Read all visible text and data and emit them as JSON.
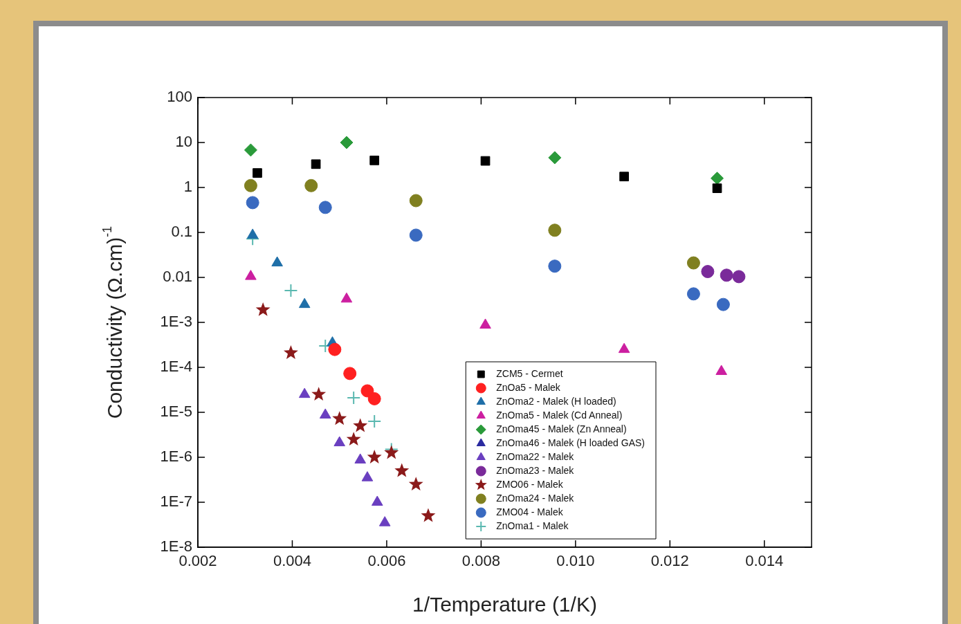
{
  "chart_data": {
    "type": "scatter",
    "xlabel": "1/Temperature (1/K)",
    "ylabel": "Conductivity (Ω.cm)$^{-1}$",
    "log": "y",
    "grid": false,
    "legend": "bottom right",
    "xlim": [
      0.002,
      0.015
    ],
    "xticks": [
      {
        "value": 0.002,
        "label": "0.002"
      },
      {
        "value": 0.004,
        "label": "0.004"
      },
      {
        "value": 0.006,
        "label": "0.006"
      },
      {
        "value": 0.008,
        "label": "0.008"
      },
      {
        "value": 0.01,
        "label": "0.010"
      },
      {
        "value": 0.012,
        "label": "0.012"
      },
      {
        "value": 0.014,
        "label": "0.014"
      }
    ],
    "ylim": [
      1e-08,
      100
    ],
    "yticks": [
      {
        "value": 100,
        "label": "100"
      },
      {
        "value": 10,
        "label": "10"
      },
      {
        "value": 1,
        "label": "1"
      },
      {
        "value": 0.1,
        "label": "0.1"
      },
      {
        "value": 0.01,
        "label": "0.01"
      },
      {
        "value": 0.001,
        "label": "1E-3"
      },
      {
        "value": 0.0001,
        "label": "1E-4"
      },
      {
        "value": 1e-05,
        "label": "1E-5"
      },
      {
        "value": 1e-06,
        "label": "1E-6"
      },
      {
        "value": 1e-07,
        "label": "1E-7"
      },
      {
        "value": 1e-08,
        "label": "1E-8"
      }
    ],
    "series": [
      {
        "name": "ZCM5 - Cermet",
        "color": "#000000",
        "marker": "square",
        "x": [
          0.00326,
          0.0045,
          0.00574,
          0.00809,
          0.01103,
          0.013
        ],
        "values": [
          2.1,
          3.3,
          4.0,
          3.9,
          1.75,
          0.96
        ]
      },
      {
        "name": "ZnOa5 - Malek",
        "color": "#ff2020",
        "marker": "circle",
        "x": [
          0.0049,
          0.00522,
          0.00559,
          0.00574
        ],
        "values": [
          0.00025,
          7.3e-05,
          3e-05,
          2e-05
        ]
      },
      {
        "name": "ZnOma2 - Malek (H loaded)",
        "color": "#1f6fa8",
        "marker": "triangle",
        "x": [
          0.00316,
          0.00368,
          0.00426,
          0.00485
        ],
        "values": [
          0.087,
          0.021,
          0.0025,
          0.00035
        ]
      },
      {
        "name": "ZnOma5 - Malek (Cd Anneal)",
        "color": "#cc1fa0",
        "marker": "triangle",
        "x": [
          0.00312,
          0.00515,
          0.00809,
          0.01103,
          0.01309
        ],
        "values": [
          0.0105,
          0.0033,
          0.00087,
          0.00025,
          8.1e-05
        ]
      },
      {
        "name": "ZnOma45 - Malek (Zn Anneal)",
        "color": "#2a9a3a",
        "marker": "diamond",
        "x": [
          0.00312,
          0.00515,
          0.00956,
          0.013
        ],
        "values": [
          6.8,
          10,
          4.6,
          1.6
        ]
      },
      {
        "name": "ZnOma46 - Malek (H loaded GAS)",
        "color": "#2a2aa0",
        "marker": "triangle"
      },
      {
        "name": "ZnOma22 - Malek",
        "color": "#6a3fc0",
        "marker": "triangle",
        "x": [
          0.00426,
          0.0047,
          0.005,
          0.00544,
          0.00559,
          0.0058,
          0.00596
        ],
        "values": [
          2.5e-05,
          8.7e-06,
          2.1e-06,
          8.7e-07,
          3.5e-07,
          1e-07,
          3.5e-08
        ]
      },
      {
        "name": "ZnOma23 - Malek",
        "color": "#7a2a9a",
        "marker": "circle",
        "x": [
          0.0128,
          0.0132,
          0.01346
        ],
        "values": [
          0.0135,
          0.0112,
          0.0104
        ]
      },
      {
        "name": "ZMO06 - Malek",
        "color": "#8b1a1a",
        "marker": "star",
        "x": [
          0.00338,
          0.00397,
          0.00456,
          0.005,
          0.00544,
          0.0053,
          0.00574,
          0.0061,
          0.00632,
          0.00662,
          0.00688
        ],
        "values": [
          0.0019,
          0.00021,
          2.5e-05,
          7.2e-06,
          5e-06,
          2.5e-06,
          1e-06,
          1.26e-06,
          5e-07,
          2.5e-07,
          5e-08
        ]
      },
      {
        "name": "ZnOma24 - Malek",
        "color": "#808020",
        "marker": "circle",
        "x": [
          0.00312,
          0.0044,
          0.00662,
          0.00956,
          0.0125
        ],
        "values": [
          1.1,
          1.1,
          0.51,
          0.112,
          0.021
        ]
      },
      {
        "name": "ZMO04 - Malek",
        "color": "#3a6ac0",
        "marker": "circle",
        "x": [
          0.00316,
          0.0047,
          0.00662,
          0.00956,
          0.0125,
          0.01313
        ],
        "values": [
          0.46,
          0.36,
          0.087,
          0.0178,
          0.0043,
          0.0025
        ]
      },
      {
        "name": "ZnOma1 - Malek",
        "color": "#5ab8b0",
        "marker": "cross",
        "x": [
          0.00316,
          0.00397,
          0.0047,
          0.0053,
          0.00574,
          0.0061
        ],
        "values": [
          0.072,
          0.0051,
          0.0003,
          2.1e-05,
          6.3e-06,
          1.5e-06
        ]
      }
    ]
  }
}
